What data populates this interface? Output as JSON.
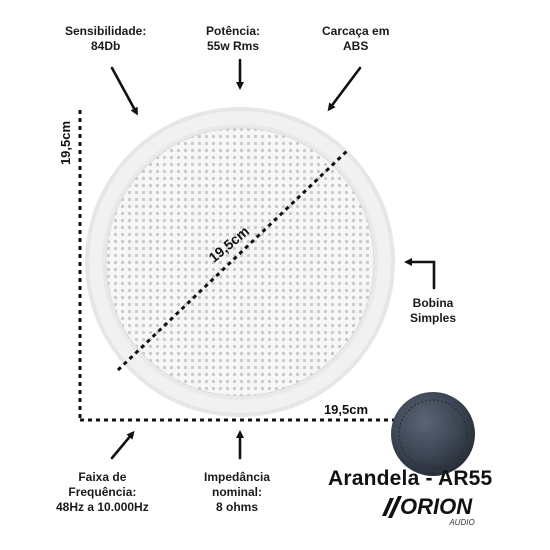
{
  "labels": {
    "sensibilidade": [
      "Sensibilidade:",
      "84Db"
    ],
    "potencia": [
      "Potência:",
      "55w Rms"
    ],
    "carcaca": [
      "Carcaça em",
      "ABS"
    ],
    "bobina": [
      "Bobina",
      "Simples"
    ],
    "faixa": [
      "Faixa de",
      "Frequência:",
      "48Hz a 10.000Hz"
    ],
    "impedancia": [
      "Impedância",
      "nominal:",
      "8 ohms"
    ]
  },
  "dimensions": {
    "height": "19,5cm",
    "width": "19,5cm",
    "diameter": "19,5cm"
  },
  "product": {
    "title": "Arandela - AR55",
    "brand": "ORION",
    "brand_sub": "AUDIO"
  },
  "colors": {
    "speaker_grille": "#f3f3f3",
    "speaker_ring": "#e4e4e4",
    "speaker_rear": "#3b4452",
    "text": "#1a1a1a"
  }
}
